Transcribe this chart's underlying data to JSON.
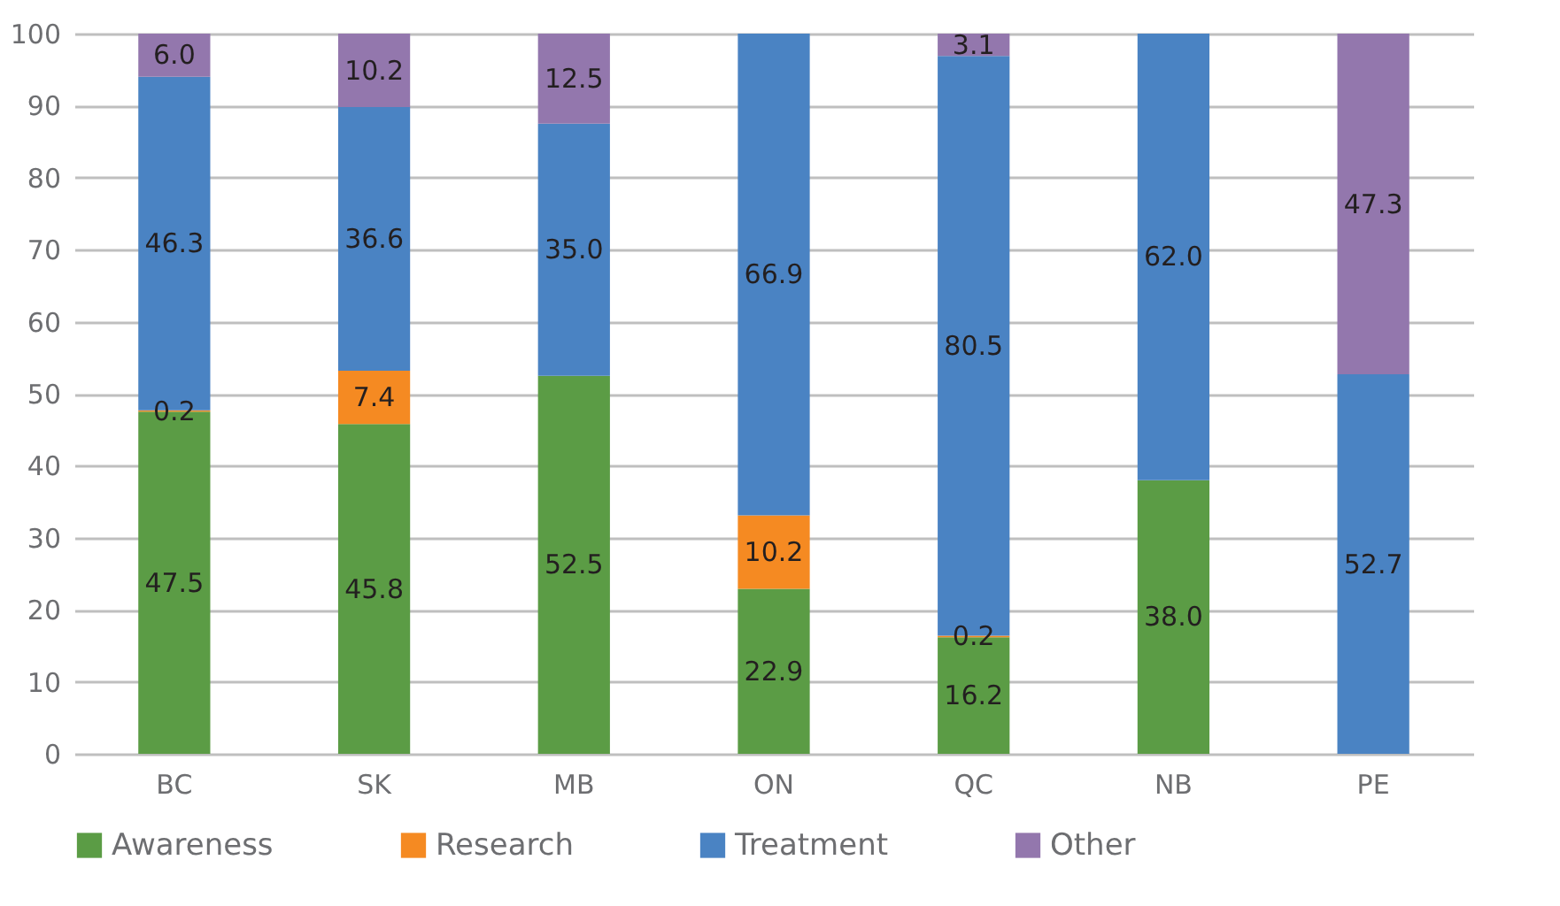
{
  "chart_data": {
    "type": "bar",
    "stacked": true,
    "categories": [
      "BC",
      "SK",
      "MB",
      "ON",
      "QC",
      "NB",
      "PE"
    ],
    "series": [
      {
        "name": "Awareness",
        "color": "#5b9c45",
        "values": [
          47.5,
          45.8,
          52.5,
          22.9,
          16.2,
          38.0,
          null
        ],
        "value_labels": [
          "47.5",
          "45.8",
          "52.5",
          "22.9",
          "16.2",
          "38.0",
          null
        ]
      },
      {
        "name": "Research",
        "color": "#f58a22",
        "values": [
          0.2,
          7.4,
          null,
          10.2,
          0.2,
          null,
          null
        ],
        "value_labels": [
          "0.2",
          "7.4",
          null,
          "10.2",
          "0.2",
          null,
          null
        ]
      },
      {
        "name": "Treatment",
        "color": "#4a83c3",
        "values": [
          46.3,
          36.6,
          35.0,
          66.9,
          80.5,
          62.0,
          52.7
        ],
        "value_labels": [
          "46.3",
          "36.6",
          "35.0",
          "66.9",
          "80.5",
          "62.0",
          "52.7"
        ]
      },
      {
        "name": "Other",
        "color": "#9377ad",
        "values": [
          6.0,
          10.2,
          12.5,
          null,
          3.1,
          null,
          47.3
        ],
        "value_labels": [
          "6.0",
          "10.2",
          "12.5",
          null,
          "3.1",
          null,
          "47.3"
        ]
      }
    ],
    "ylim": [
      0,
      100
    ],
    "yticks": [
      0,
      10,
      20,
      30,
      40,
      50,
      60,
      70,
      80,
      90,
      100
    ],
    "grid": "y",
    "legend": "bottom"
  }
}
